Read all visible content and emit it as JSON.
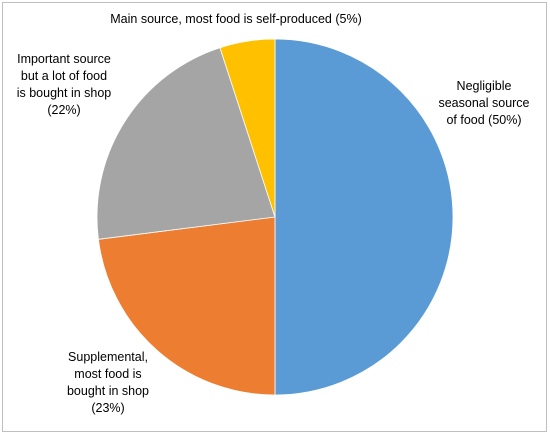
{
  "chart_data": {
    "type": "pie",
    "title": "",
    "slices": [
      {
        "category": "Negligible seasonal source of food",
        "value": 50,
        "label_lines": [
          "Negligible",
          "seasonal source",
          "of food (50%)"
        ],
        "color": "#5b9bd5"
      },
      {
        "category": "Supplemental, most food is bought in shop",
        "value": 23,
        "label_lines": [
          "Supplemental,",
          "most food is",
          "bought in shop",
          "(23%)"
        ],
        "color": "#ed7d31"
      },
      {
        "category": "Important source but a lot of food is bought in shop",
        "value": 22,
        "label_lines": [
          "Important source",
          "but a lot of food",
          "is bought in shop",
          "(22%)"
        ],
        "color": "#a5a5a5"
      },
      {
        "category": "Main source, most food is self-produced",
        "value": 5,
        "label_lines": [
          "Main source, most food is self-produced (5%)"
        ],
        "color": "#ffc000"
      }
    ],
    "start_angle": "12 o'clock",
    "direction": "clockwise",
    "legend": "none"
  }
}
